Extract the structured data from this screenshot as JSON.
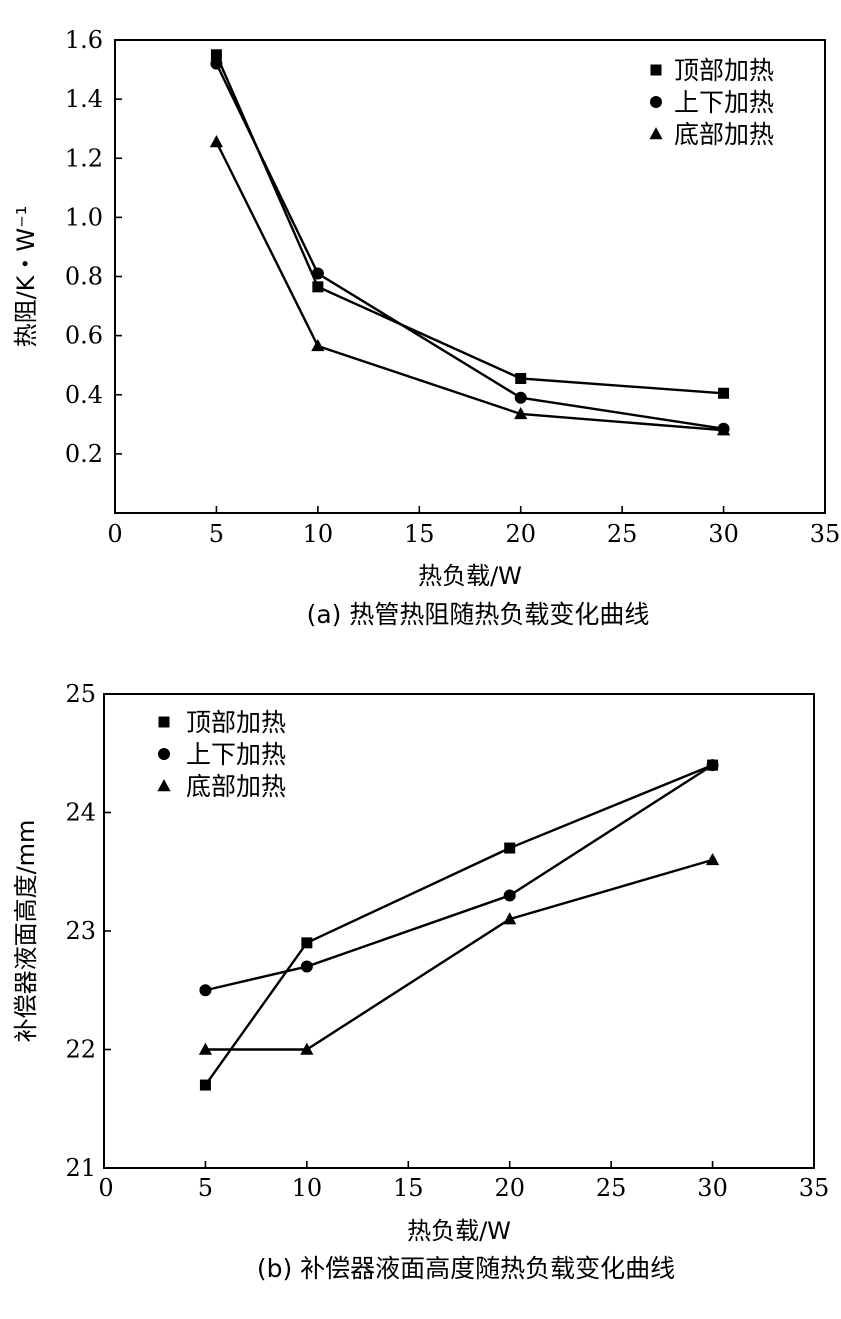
{
  "chart_data": [
    {
      "type": "line",
      "title": "",
      "caption": "(a) 热管热阻随热负载变化曲线",
      "xlabel": "热负载/W",
      "ylabel": "热阻/K・W⁻¹",
      "xlim": [
        0,
        35
      ],
      "ylim": [
        0,
        1.6
      ],
      "xticks": [
        "0",
        "5",
        "10",
        "15",
        "20",
        "25",
        "30",
        "35"
      ],
      "yticks": [
        "0.2",
        "0.4",
        "0.6",
        "0.8",
        "1.0",
        "1.2",
        "1.4",
        "1.6"
      ],
      "legend_position": "top-right",
      "x": [
        5,
        10,
        20,
        30
      ],
      "series": [
        {
          "name": "顶部加热",
          "marker": "square",
          "values": [
            1.55,
            0.765,
            0.455,
            0.405
          ]
        },
        {
          "name": "上下加热",
          "marker": "circle",
          "values": [
            1.52,
            0.81,
            0.39,
            0.285
          ]
        },
        {
          "name": "底部加热",
          "marker": "triangle",
          "values": [
            1.255,
            0.565,
            0.335,
            0.28
          ]
        }
      ]
    },
    {
      "type": "line",
      "title": "",
      "caption": "(b) 补偿器液面高度随热负载变化曲线",
      "xlabel": "热负载/W",
      "ylabel": "补偿器液面高度/mm",
      "xlim": [
        0,
        35
      ],
      "ylim": [
        21,
        25
      ],
      "xticks": [
        "0",
        "5",
        "10",
        "15",
        "20",
        "25",
        "30",
        "35"
      ],
      "yticks": [
        "21",
        "22",
        "23",
        "24",
        "25"
      ],
      "legend_position": "top-left",
      "x": [
        5,
        10,
        20,
        30
      ],
      "series": [
        {
          "name": "顶部加热",
          "marker": "square",
          "values": [
            21.7,
            22.9,
            23.7,
            24.4
          ]
        },
        {
          "name": "上下加热",
          "marker": "circle",
          "values": [
            22.5,
            22.7,
            23.3,
            24.4
          ]
        },
        {
          "name": "底部加热",
          "marker": "triangle",
          "values": [
            22.0,
            22.0,
            23.1,
            23.6
          ]
        }
      ]
    }
  ]
}
